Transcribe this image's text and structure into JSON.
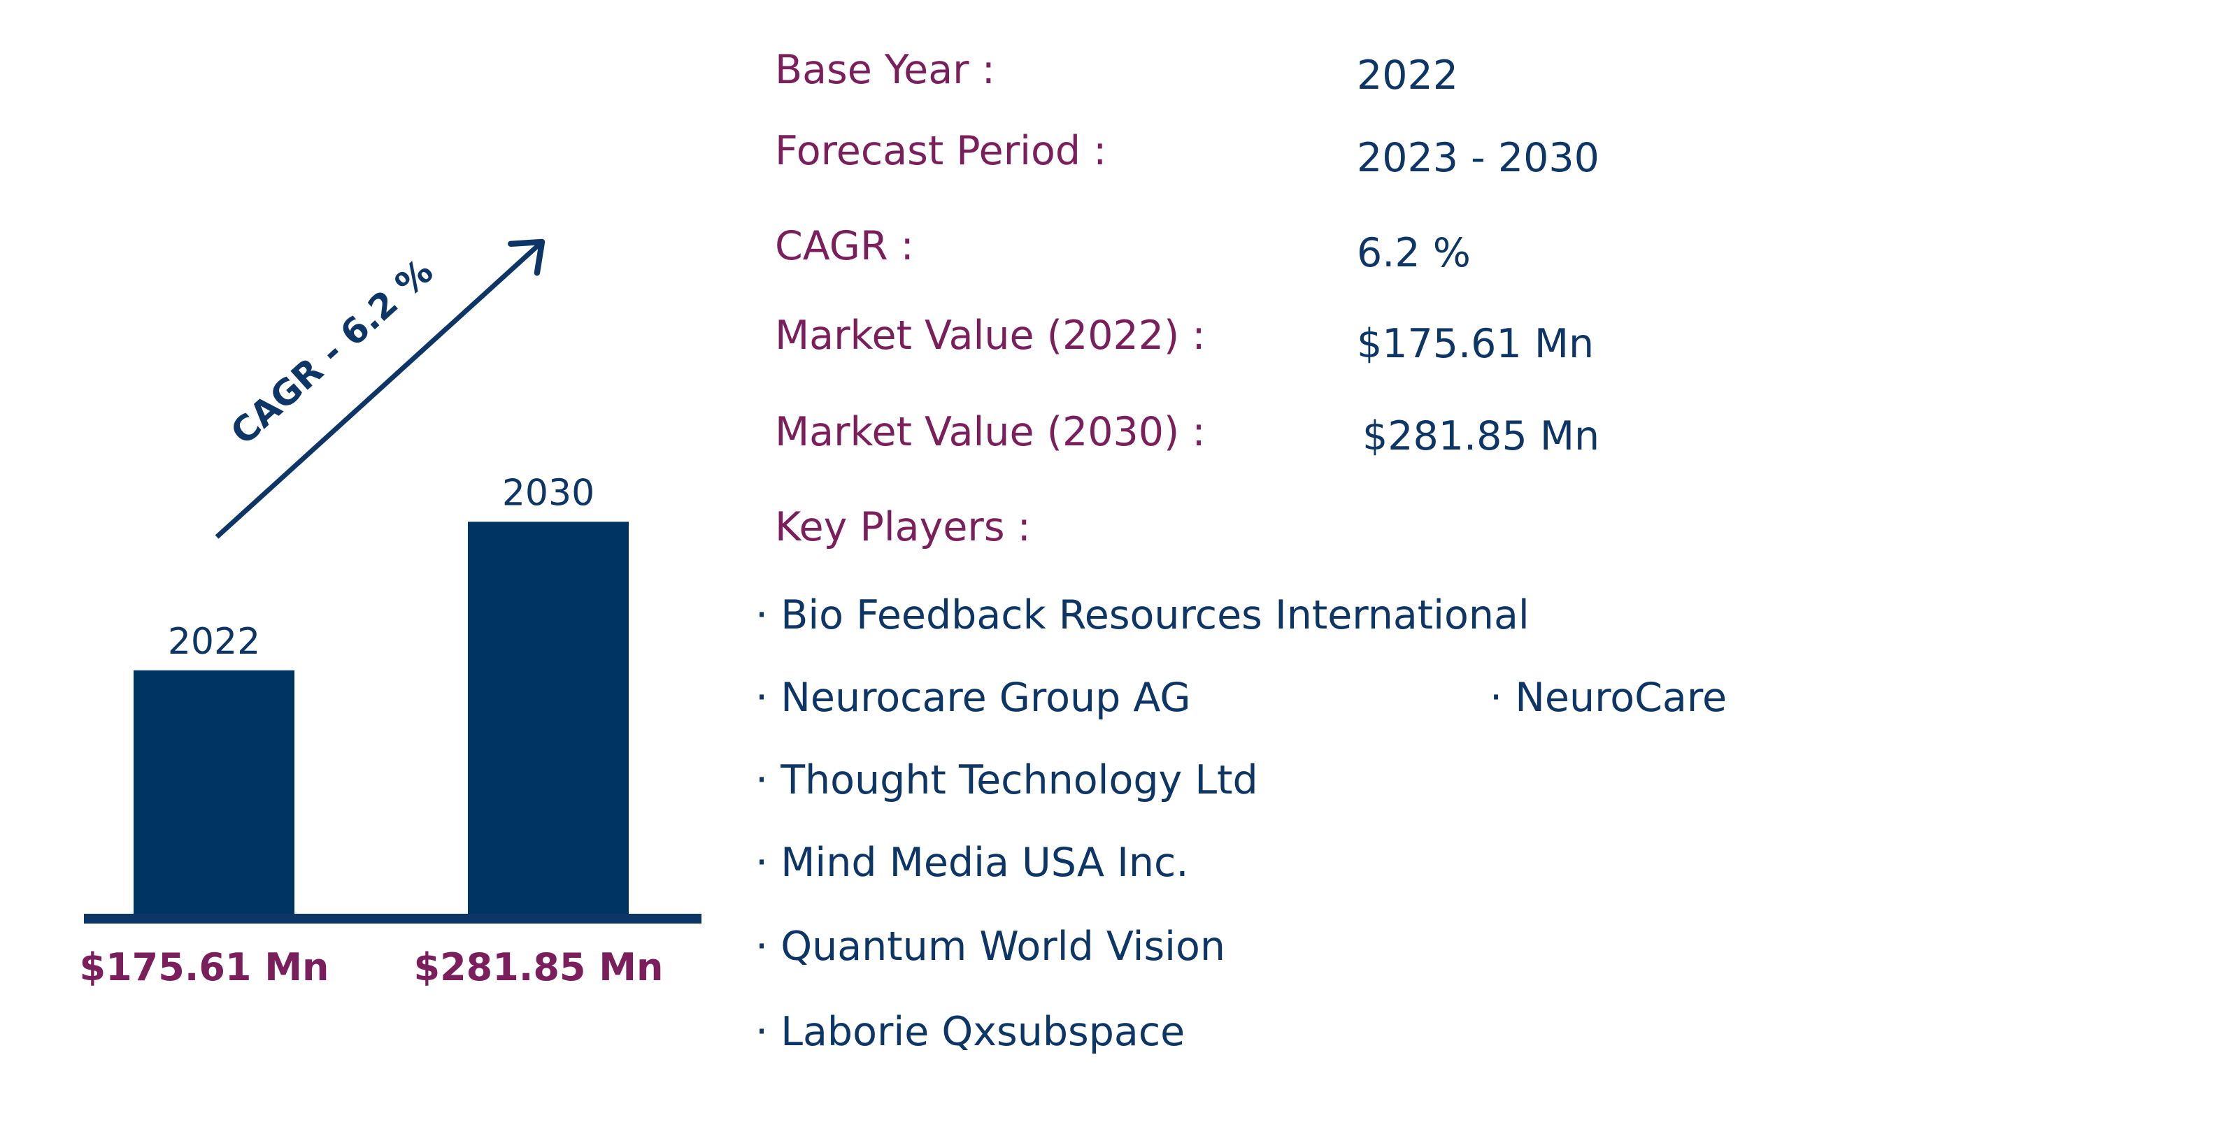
{
  "colors": {
    "bar": "#003463",
    "label_plum": "#7a1f5c",
    "value_navy": "#0d3566"
  },
  "chart_data": {
    "type": "bar",
    "categories": [
      "2022",
      "2030"
    ],
    "values": [
      175.61,
      281.85
    ],
    "value_labels": [
      "$175.61 Mn",
      "$281.85 Mn"
    ],
    "growth_annotation": "CAGR - 6.2 %",
    "ylim": [
      0,
      300
    ],
    "grid": false,
    "axes_visible": false,
    "title": "",
    "xlabel": "",
    "ylabel": ""
  },
  "summary": {
    "base_year": {
      "label": "Base Year :",
      "value": "2022"
    },
    "forecast_period": {
      "label": "Forecast Period :",
      "value": "2023 - 2030"
    },
    "cagr": {
      "label": "CAGR :",
      "value": "6.2 %"
    },
    "market_value_2022": {
      "label": "Market Value (2022) :",
      "value": "$175.61 Mn"
    },
    "market_value_2030": {
      "label": "Market Value (2030) :",
      "value": "$281.85 Mn"
    },
    "key_players_label": "Key Players :"
  },
  "key_players": [
    "· Bio Feedback Resources International",
    "· Neurocare Group AG",
    "· NeuroCare",
    "· Thought Technology Ltd",
    "· Mind Media USA Inc.",
    "· Quantum World Vision",
    "· Laborie Qxsubspace"
  ]
}
